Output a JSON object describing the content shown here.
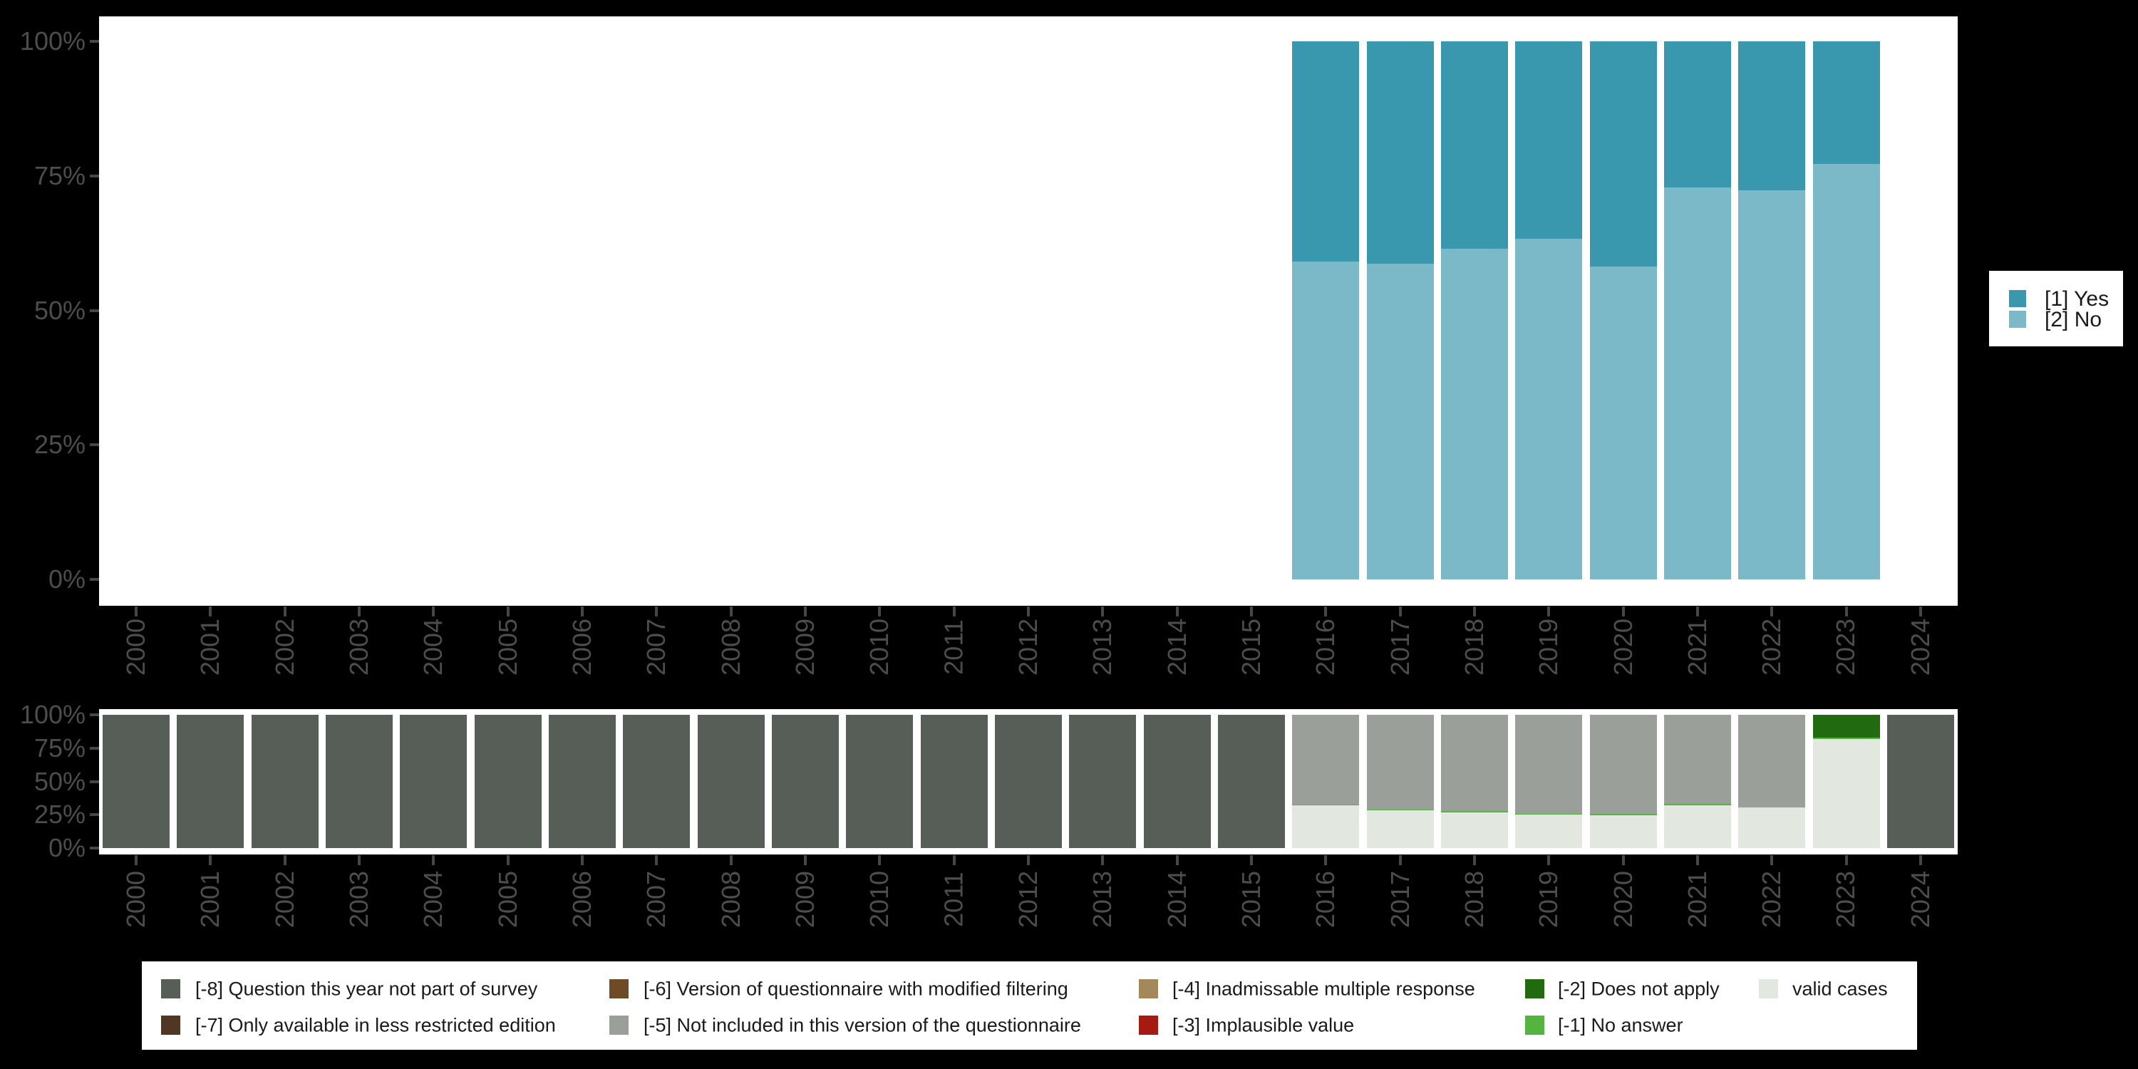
{
  "background_color": "#000000",
  "panel_color": "#FFFFFF",
  "axis": {
    "text_color": "#4D4D4D",
    "tick_color": "#464646",
    "ytick_labels": [
      "100%",
      "75%",
      "50%",
      "25%",
      "0%"
    ]
  },
  "legend_top": {
    "items": [
      {
        "label": "[1] Yes",
        "color": "#3A98AE"
      },
      {
        "label": "[2] No",
        "color": "#7BB9C8"
      }
    ]
  },
  "legend_bottom": {
    "columns": [
      [
        {
          "label": "[-8] Question this year not part of survey",
          "color": "#575D57"
        },
        {
          "label": "[-7] Only available in less restricted edition",
          "color": "#503723"
        }
      ],
      [
        {
          "label": "[-6] Version of questionnaire with modified filtering",
          "color": "#6E4A26"
        },
        {
          "label": "[-5] Not included in this version of the questionnaire",
          "color": "#9AA099"
        }
      ],
      [
        {
          "label": "[-4] Inadmissable multiple response",
          "color": "#A5885A"
        },
        {
          "label": "[-3] Implausible value",
          "color": "#A51B12"
        }
      ],
      [
        {
          "label": "[-2] Does not apply",
          "color": "#216A10"
        },
        {
          "label": "[-1] No answer",
          "color": "#55B43F"
        }
      ],
      [
        {
          "label": "valid cases",
          "color": "#E2E7E0"
        }
      ]
    ]
  },
  "chart_data": [
    {
      "type": "bar",
      "stacked": true,
      "title": "",
      "xlabel": "",
      "ylabel": "",
      "ylim": [
        0,
        100
      ],
      "ytick_labels": [
        "0%",
        "25%",
        "50%",
        "75%",
        "100%"
      ],
      "grid": false,
      "legend_position": "right",
      "categories": [
        "2000",
        "2001",
        "2002",
        "2003",
        "2004",
        "2005",
        "2006",
        "2007",
        "2008",
        "2009",
        "2010",
        "2011",
        "2012",
        "2013",
        "2014",
        "2015",
        "2016",
        "2017",
        "2018",
        "2019",
        "2020",
        "2021",
        "2022",
        "2023",
        "2024"
      ],
      "series": [
        {
          "name": "[2] No",
          "color": "#7BB9C8",
          "values": [
            null,
            null,
            null,
            null,
            null,
            null,
            null,
            null,
            null,
            null,
            null,
            null,
            null,
            null,
            null,
            null,
            59.1,
            58.7,
            61.5,
            63.3,
            58.1,
            72.8,
            72.3,
            77.2,
            null
          ]
        },
        {
          "name": "[1] Yes",
          "color": "#3A98AE",
          "values": [
            null,
            null,
            null,
            null,
            null,
            null,
            null,
            null,
            null,
            null,
            null,
            null,
            null,
            null,
            null,
            null,
            40.9,
            41.3,
            38.5,
            36.7,
            41.9,
            27.2,
            27.7,
            22.8,
            null
          ]
        }
      ]
    },
    {
      "type": "bar",
      "stacked": true,
      "title": "",
      "xlabel": "",
      "ylabel": "",
      "ylim": [
        0,
        100
      ],
      "ytick_labels": [
        "0%",
        "25%",
        "50%",
        "75%",
        "100%"
      ],
      "grid": false,
      "legend_position": "bottom",
      "categories": [
        "2000",
        "2001",
        "2002",
        "2003",
        "2004",
        "2005",
        "2006",
        "2007",
        "2008",
        "2009",
        "2010",
        "2011",
        "2012",
        "2013",
        "2014",
        "2015",
        "2016",
        "2017",
        "2018",
        "2019",
        "2020",
        "2021",
        "2022",
        "2023",
        "2024"
      ],
      "series": [
        {
          "name": "valid cases",
          "color": "#E2E7E0",
          "values": [
            0,
            0,
            0,
            0,
            0,
            0,
            0,
            0,
            0,
            0,
            0,
            0,
            0,
            0,
            0,
            0,
            32.1,
            28.2,
            26.9,
            25.1,
            24.8,
            32.1,
            30.5,
            81.8,
            0
          ]
        },
        {
          "name": "[-1] No answer",
          "color": "#55B43F",
          "values": [
            0,
            0,
            0,
            0,
            0,
            0,
            0,
            0,
            0,
            0,
            0,
            0,
            0,
            0,
            0,
            0,
            0.7,
            0.7,
            0.7,
            0.7,
            1.1,
            1.2,
            0,
            1.2,
            0
          ]
        },
        {
          "name": "[-2] Does not apply",
          "color": "#216A10",
          "values": [
            0,
            0,
            0,
            0,
            0,
            0,
            0,
            0,
            0,
            0,
            0,
            0,
            0,
            0,
            0,
            0,
            0,
            0,
            0,
            0,
            0,
            0,
            0,
            17.0,
            0
          ]
        },
        {
          "name": "[-3] Implausible value",
          "color": "#A51B12",
          "values": [
            0,
            0,
            0,
            0,
            0,
            0,
            0,
            0,
            0,
            0,
            0,
            0,
            0,
            0,
            0,
            0,
            0,
            0,
            0,
            0,
            0,
            0,
            0,
            0,
            0
          ]
        },
        {
          "name": "[-4] Inadmissable multiple response",
          "color": "#A5885A",
          "values": [
            0,
            0,
            0,
            0,
            0,
            0,
            0,
            0,
            0,
            0,
            0,
            0,
            0,
            0,
            0,
            0,
            0,
            0,
            0,
            0,
            0,
            0,
            0,
            0,
            0
          ]
        },
        {
          "name": "[-5] Not included in this version of the questionnaire",
          "color": "#9AA099",
          "values": [
            0,
            0,
            0,
            0,
            0,
            0,
            0,
            0,
            0,
            0,
            0,
            0,
            0,
            0,
            0,
            0,
            67.2,
            71.1,
            72.4,
            74.2,
            74.1,
            66.7,
            69.5,
            0,
            0
          ]
        },
        {
          "name": "[-6] Version of questionnaire with modified filtering",
          "color": "#6E4A26",
          "values": [
            0,
            0,
            0,
            0,
            0,
            0,
            0,
            0,
            0,
            0,
            0,
            0,
            0,
            0,
            0,
            0,
            0,
            0,
            0,
            0,
            0,
            0,
            0,
            0,
            0
          ]
        },
        {
          "name": "[-7] Only available in less restricted edition",
          "color": "#503723",
          "values": [
            0,
            0,
            0,
            0,
            0,
            0,
            0,
            0,
            0,
            0,
            0,
            0,
            0,
            0,
            0,
            0,
            0,
            0,
            0,
            0,
            0,
            0,
            0,
            0,
            0
          ]
        },
        {
          "name": "[-8] Question this year not part of survey",
          "color": "#575D57",
          "values": [
            100,
            100,
            100,
            100,
            100,
            100,
            100,
            100,
            100,
            100,
            100,
            100,
            100,
            100,
            100,
            100,
            0,
            0,
            0,
            0,
            0,
            0,
            0,
            0,
            100
          ]
        }
      ]
    }
  ]
}
